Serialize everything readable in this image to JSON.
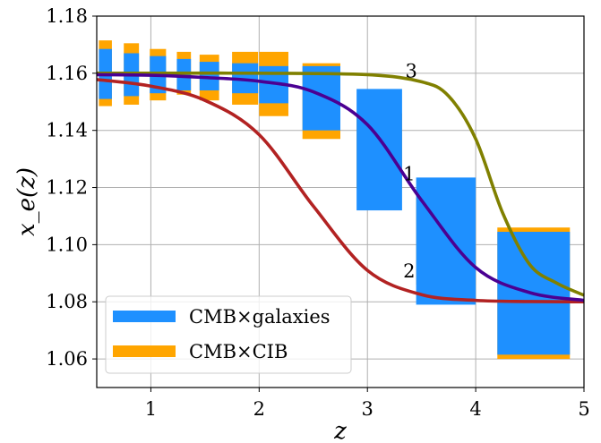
{
  "chart_data": {
    "type": "line",
    "title": "",
    "xlabel": "z",
    "ylabel": "x_e(z)",
    "xlim": [
      0.5,
      5.0
    ],
    "ylim": [
      1.05,
      1.18
    ],
    "xticks": [
      1,
      2,
      3,
      4,
      5
    ],
    "yticks": [
      1.06,
      1.08,
      1.1,
      1.12,
      1.14,
      1.16,
      1.18
    ],
    "ytick_labels": [
      "1.06",
      "1.08",
      "1.10",
      "1.12",
      "1.14",
      "1.16",
      "1.18"
    ],
    "grid": true,
    "legend_position": "lower-left",
    "error_band_series": [
      {
        "name": "CMB×galaxies",
        "color": "#1e90ff",
        "bands": [
          {
            "x0": 0.52,
            "x1": 0.64,
            "low": 1.151,
            "high": 1.1685
          },
          {
            "x0": 0.75,
            "x1": 0.89,
            "low": 1.152,
            "high": 1.167
          },
          {
            "x0": 0.99,
            "x1": 1.14,
            "low": 1.153,
            "high": 1.166
          },
          {
            "x0": 1.24,
            "x1": 1.37,
            "low": 1.154,
            "high": 1.165
          },
          {
            "x0": 1.45,
            "x1": 1.63,
            "low": 1.154,
            "high": 1.164
          },
          {
            "x0": 1.75,
            "x1": 1.99,
            "low": 1.153,
            "high": 1.1635
          },
          {
            "x0": 2.0,
            "x1": 2.27,
            "low": 1.1495,
            "high": 1.1625
          },
          {
            "x0": 2.4,
            "x1": 2.75,
            "low": 1.14,
            "high": 1.1625
          },
          {
            "x0": 2.9,
            "x1": 3.32,
            "low": 1.112,
            "high": 1.1545
          },
          {
            "x0": 3.45,
            "x1": 4.0,
            "low": 1.079,
            "high": 1.1235
          },
          {
            "x0": 4.2,
            "x1": 4.87,
            "low": 1.0615,
            "high": 1.1045
          }
        ]
      },
      {
        "name": "CMB×CIB",
        "color": "#ffa500",
        "bands": [
          {
            "x0": 0.52,
            "x1": 0.64,
            "low": 1.1485,
            "high": 1.1715
          },
          {
            "x0": 0.75,
            "x1": 0.89,
            "low": 1.149,
            "high": 1.1705
          },
          {
            "x0": 0.99,
            "x1": 1.14,
            "low": 1.1505,
            "high": 1.1685
          },
          {
            "x0": 1.24,
            "x1": 1.37,
            "low": 1.1525,
            "high": 1.1675
          },
          {
            "x0": 1.45,
            "x1": 1.63,
            "low": 1.1505,
            "high": 1.1665
          },
          {
            "x0": 1.75,
            "x1": 1.99,
            "low": 1.149,
            "high": 1.1675
          },
          {
            "x0": 2.0,
            "x1": 2.27,
            "low": 1.145,
            "high": 1.1675
          },
          {
            "x0": 2.4,
            "x1": 2.75,
            "low": 1.137,
            "high": 1.1635
          },
          {
            "x0": 2.9,
            "x1": 3.32,
            "low": 1.1195,
            "high": 1.146
          },
          {
            "x0": 3.45,
            "x1": 4.0,
            "low": 1.086,
            "high": 1.1165
          },
          {
            "x0": 4.2,
            "x1": 4.87,
            "low": 1.06,
            "high": 1.106
          }
        ]
      }
    ],
    "curves": [
      {
        "label": "1",
        "color": "#4b0092",
        "points": [
          [
            0.5,
            1.1595
          ],
          [
            1.0,
            1.1593
          ],
          [
            1.5,
            1.1585
          ],
          [
            2.0,
            1.1572
          ],
          [
            2.5,
            1.1535
          ],
          [
            3.0,
            1.142
          ],
          [
            3.5,
            1.1155
          ],
          [
            4.0,
            1.092
          ],
          [
            4.5,
            1.0832
          ],
          [
            5.0,
            1.0805
          ]
        ]
      },
      {
        "label": "2",
        "color": "#b22222",
        "points": [
          [
            0.5,
            1.1578
          ],
          [
            1.0,
            1.1555
          ],
          [
            1.5,
            1.1505
          ],
          [
            2.0,
            1.1385
          ],
          [
            2.5,
            1.1135
          ],
          [
            3.0,
            1.091
          ],
          [
            3.5,
            1.0825
          ],
          [
            4.0,
            1.0805
          ],
          [
            4.5,
            1.0801
          ],
          [
            5.0,
            1.08
          ]
        ]
      },
      {
        "label": "3",
        "color": "#808000",
        "points": [
          [
            0.5,
            1.16
          ],
          [
            1.0,
            1.16
          ],
          [
            2.0,
            1.16
          ],
          [
            3.0,
            1.1595
          ],
          [
            3.5,
            1.157
          ],
          [
            3.75,
            1.152
          ],
          [
            4.0,
            1.137
          ],
          [
            4.25,
            1.111
          ],
          [
            4.5,
            1.093
          ],
          [
            4.75,
            1.0865
          ],
          [
            5.0,
            1.0823
          ]
        ]
      }
    ],
    "curve_label_text": [
      "1",
      "2",
      "3"
    ]
  }
}
